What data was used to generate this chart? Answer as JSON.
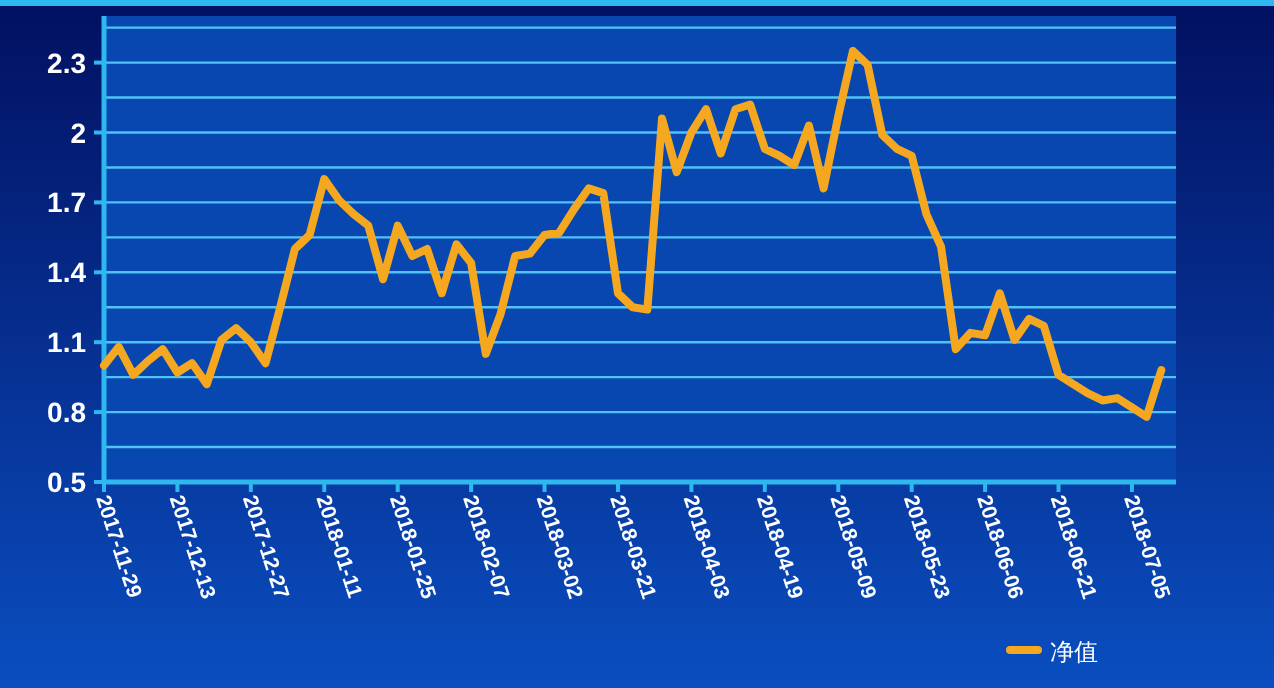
{
  "chart_data": {
    "type": "line",
    "categories": [
      "2017-11-29",
      null,
      null,
      null,
      null,
      "2017-12-13",
      null,
      null,
      null,
      null,
      "2017-12-27",
      null,
      null,
      null,
      null,
      "2018-01-11",
      null,
      null,
      null,
      null,
      "2018-01-25",
      null,
      null,
      null,
      null,
      "2018-02-07",
      null,
      null,
      null,
      null,
      "2018-03-02",
      null,
      null,
      null,
      null,
      "2018-03-21",
      null,
      null,
      null,
      null,
      "2018-04-03",
      null,
      null,
      null,
      null,
      "2018-04-19",
      null,
      null,
      null,
      null,
      "2018-05-09",
      null,
      null,
      null,
      null,
      "2018-05-23",
      null,
      null,
      null,
      null,
      "2018-06-06",
      null,
      null,
      null,
      null,
      "2018-06-21",
      null,
      null,
      null,
      null,
      "2018-07-05",
      null,
      null
    ],
    "series": [
      {
        "name": "净值",
        "color": "#f5a81f",
        "values": [
          1.0,
          1.08,
          0.96,
          1.02,
          1.07,
          0.97,
          1.01,
          0.92,
          1.11,
          1.16,
          1.1,
          1.01,
          1.25,
          1.5,
          1.56,
          1.8,
          1.71,
          1.65,
          1.6,
          1.37,
          1.6,
          1.47,
          1.5,
          1.31,
          1.52,
          1.44,
          1.05,
          1.22,
          1.47,
          1.48,
          1.56,
          1.57,
          1.67,
          1.76,
          1.74,
          1.31,
          1.25,
          1.24,
          2.06,
          1.83,
          2.0,
          2.1,
          1.91,
          2.1,
          2.12,
          1.93,
          1.9,
          1.86,
          2.03,
          1.76,
          2.07,
          2.35,
          2.29,
          1.99,
          1.93,
          1.9,
          1.65,
          1.51,
          1.07,
          1.14,
          1.13,
          1.31,
          1.11,
          1.2,
          1.17,
          0.96,
          0.92,
          0.88,
          0.85,
          0.86,
          0.82,
          0.78,
          0.98
        ]
      }
    ],
    "ylim": [
      0.5,
      2.5
    ],
    "yticks": [
      0.5,
      {
        "value": 0.65,
        "label": null
      },
      0.8,
      {
        "value": 0.95,
        "label": null
      },
      1.1,
      {
        "value": 1.25,
        "label": null
      },
      1.4,
      {
        "value": 1.55,
        "label": null
      },
      1.7,
      {
        "value": 1.85,
        "label": null
      },
      2,
      {
        "value": 2.15,
        "label": null
      },
      2.3,
      {
        "value": 2.45,
        "label": null
      }
    ],
    "grid": "y",
    "legend": "bottom right"
  }
}
